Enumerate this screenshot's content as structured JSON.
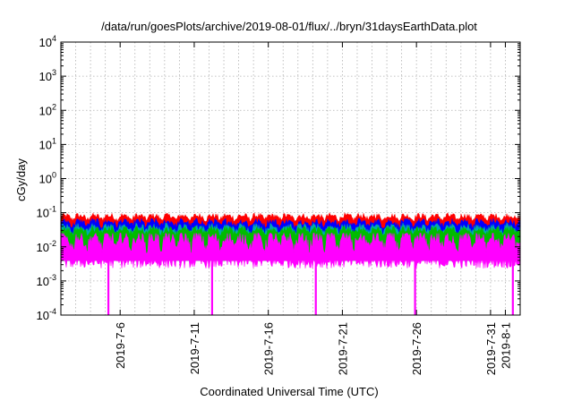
{
  "chart_data": {
    "type": "area",
    "title": "/data/run/goesPlots/archive/2019-08-01/flux/../bryn/31daysEarthData.plot",
    "xlabel": "Coordinated Universal Time (UTC)",
    "ylabel": "cGy/day",
    "yscale": "log",
    "ylim": [
      0.0001,
      10000
    ],
    "y_ticks": [
      {
        "base": "10",
        "exp": "-4",
        "value": 0.0001
      },
      {
        "base": "10",
        "exp": "-3",
        "value": 0.001
      },
      {
        "base": "10",
        "exp": "-2",
        "value": 0.01
      },
      {
        "base": "10",
        "exp": "-1",
        "value": 0.1
      },
      {
        "base": "10",
        "exp": "0",
        "value": 1
      },
      {
        "base": "10",
        "exp": "1",
        "value": 10
      },
      {
        "base": "10",
        "exp": "2",
        "value": 100
      },
      {
        "base": "10",
        "exp": "3",
        "value": 1000
      },
      {
        "base": "10",
        "exp": "4",
        "value": 10000
      }
    ],
    "xlim": [
      "2019-07-02",
      "2019-08-02"
    ],
    "x_ticks": [
      {
        "label": "2019-7-6",
        "date": "2019-07-06"
      },
      {
        "label": "2019-7-11",
        "date": "2019-07-11"
      },
      {
        "label": "2019-7-16",
        "date": "2019-07-16"
      },
      {
        "label": "2019-7-21",
        "date": "2019-07-21"
      },
      {
        "label": "2019-7-26",
        "date": "2019-07-26"
      },
      {
        "label": "2019-7-31",
        "date": "2019-07-31"
      },
      {
        "label": "2019-8-1",
        "date": "2019-08-01"
      }
    ],
    "grid": true,
    "legend": "none",
    "series": [
      {
        "color": "#ff0000",
        "typical_value": 0.075,
        "range": [
          0.05,
          0.1
        ]
      },
      {
        "color": "#0000ff",
        "typical_value": 0.05,
        "range": [
          0.03,
          0.07
        ]
      },
      {
        "color": "#00aaaa",
        "typical_value": 0.035,
        "range": [
          0.02,
          0.05
        ]
      },
      {
        "color": "#00bb00",
        "typical_value": 0.03,
        "range": [
          0.018,
          0.04
        ]
      },
      {
        "color": "#ff00ff",
        "typical_value": 0.015,
        "range": [
          0.004,
          0.025
        ]
      }
    ],
    "dropouts": [
      {
        "date": "2019-07-05.2",
        "min_value": 0.0001
      },
      {
        "date": "2019-07-12.2",
        "min_value": 0.0001
      },
      {
        "date": "2019-07-19.2",
        "min_value": 0.0001
      },
      {
        "date": "2019-07-25.9",
        "min_value": 0.0001
      },
      {
        "date": "2019-08-01.5",
        "min_value": 0.0001
      }
    ]
  }
}
